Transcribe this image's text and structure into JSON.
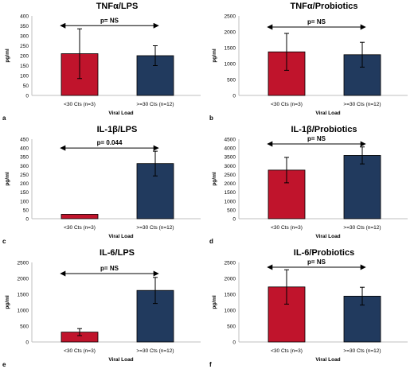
{
  "colors": {
    "group_a": "#c0142c",
    "group_b": "#213a5e",
    "axis": "#bfbfbf",
    "text": "#000000"
  },
  "chart_data": [
    {
      "type": "bar",
      "panel_letter": "a",
      "title": "TNFα/LPS",
      "categories": [
        "<30 Cts (n=3)",
        ">=30 Cts (n=12)"
      ],
      "values": [
        210,
        200
      ],
      "error": [
        125,
        50
      ],
      "ylim": [
        0,
        400
      ],
      "yticks": [
        0,
        50,
        100,
        150,
        200,
        250,
        300,
        350,
        400
      ],
      "ylabel": "pg/ml",
      "xlabel": "Viral Load",
      "annotation": "p= NS"
    },
    {
      "type": "bar",
      "panel_letter": "b",
      "title": "TNFα/Probiotics",
      "categories": [
        "<30 Cts (n=3)",
        ">=30 Cts (n=12)"
      ],
      "values": [
        1370,
        1280
      ],
      "error": [
        580,
        390
      ],
      "ylim": [
        0,
        2500
      ],
      "yticks": [
        0,
        500,
        1000,
        1500,
        2000,
        2500
      ],
      "ylabel": "pg/ml",
      "xlabel": "Viral Load",
      "annotation": "p= NS"
    },
    {
      "type": "bar",
      "panel_letter": "c",
      "title": "IL-1β/LPS",
      "categories": [
        "<30 Cts (n=3)",
        ">=30 Cts (n=12)"
      ],
      "values": [
        25,
        312
      ],
      "error": [
        0,
        70
      ],
      "ylim": [
        0,
        450
      ],
      "yticks": [
        0,
        50,
        100,
        150,
        200,
        250,
        300,
        350,
        400,
        450
      ],
      "ylabel": "pg/ml",
      "xlabel": "Viral Load",
      "annotation": "p= 0.044"
    },
    {
      "type": "bar",
      "panel_letter": "d",
      "title": "IL-1β/Probiotics",
      "categories": [
        "<30 Cts (n=3)",
        ">=30 Cts (n=12)"
      ],
      "values": [
        2750,
        3580
      ],
      "error": [
        720,
        480
      ],
      "ylim": [
        0,
        4500
      ],
      "yticks": [
        0,
        500,
        1000,
        1500,
        2000,
        2500,
        3000,
        3500,
        4000,
        4500
      ],
      "ylabel": "pg/ml",
      "xlabel": "Viral Load",
      "annotation": "p= NS"
    },
    {
      "type": "bar",
      "panel_letter": "e",
      "title": "IL-6/LPS",
      "categories": [
        "<30 Cts (n=3)",
        ">=30 Cts (n=12)"
      ],
      "values": [
        310,
        1620
      ],
      "error": [
        110,
        410
      ],
      "ylim": [
        0,
        2500
      ],
      "yticks": [
        0,
        500,
        1000,
        1500,
        2000,
        2500
      ],
      "ylabel": "pg/ml",
      "xlabel": "Viral Load",
      "annotation": "p= NS"
    },
    {
      "type": "bar",
      "panel_letter": "f",
      "title": "IL-6/Probiotics",
      "categories": [
        "<30 Cts (n=3)",
        ">=30 Cts (n=12)"
      ],
      "values": [
        1730,
        1440
      ],
      "error": [
        540,
        280
      ],
      "ylim": [
        0,
        2500
      ],
      "yticks": [
        0,
        500,
        1000,
        1500,
        2000,
        2500
      ],
      "ylabel": "pg/ml",
      "xlabel": "Viral Load",
      "annotation": "p= NS"
    }
  ]
}
